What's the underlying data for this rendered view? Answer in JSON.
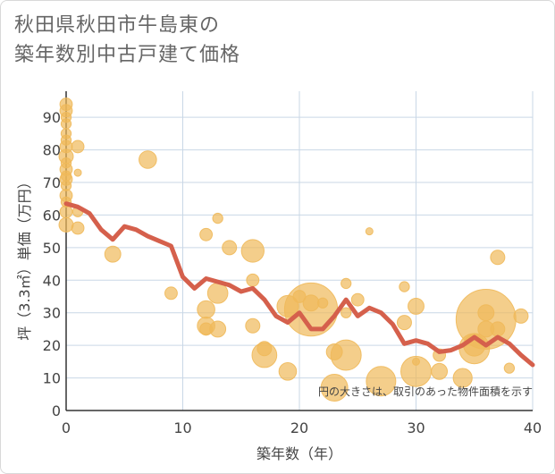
{
  "title_lines": [
    "秋田県秋田市牛島東の",
    "築年数別中古戸建て価格"
  ],
  "chart_data": {
    "type": "scatter",
    "xlabel": "築年数（年）",
    "ylabel": "坪（3.3㎡）単価（万円）",
    "xlim": [
      0,
      40
    ],
    "ylim": [
      0,
      98
    ],
    "xticks": [
      0,
      10,
      20,
      30,
      40
    ],
    "yticks": [
      0,
      10,
      20,
      30,
      40,
      50,
      60,
      70,
      80,
      90
    ],
    "grid": true,
    "note": "円の大きさは、取引のあった物件面積を示す",
    "colors": {
      "bubble": "#f0b95a",
      "line": "#d5604c",
      "grid": "#c9d7e6",
      "text": "#444444"
    },
    "points": [
      {
        "x": 0,
        "y": 94,
        "size": 3
      },
      {
        "x": 0,
        "y": 92,
        "size": 3
      },
      {
        "x": 0,
        "y": 90,
        "size": 2
      },
      {
        "x": 0,
        "y": 88,
        "size": 2
      },
      {
        "x": 0,
        "y": 85,
        "size": 2
      },
      {
        "x": 0,
        "y": 83,
        "size": 2
      },
      {
        "x": 0,
        "y": 81,
        "size": 3
      },
      {
        "x": 0,
        "y": 78,
        "size": 4
      },
      {
        "x": 0,
        "y": 76,
        "size": 2
      },
      {
        "x": 0,
        "y": 74,
        "size": 3
      },
      {
        "x": 0,
        "y": 72,
        "size": 2
      },
      {
        "x": 0,
        "y": 71,
        "size": 3
      },
      {
        "x": 0,
        "y": 69,
        "size": 2
      },
      {
        "x": 0,
        "y": 66,
        "size": 3
      },
      {
        "x": 0,
        "y": 64,
        "size": 2
      },
      {
        "x": 0,
        "y": 61,
        "size": 3
      },
      {
        "x": 0,
        "y": 57,
        "size": 4
      },
      {
        "x": 1,
        "y": 81,
        "size": 3
      },
      {
        "x": 1,
        "y": 73,
        "size": 1
      },
      {
        "x": 1,
        "y": 61,
        "size": 2
      },
      {
        "x": 1,
        "y": 56,
        "size": 3
      },
      {
        "x": 4,
        "y": 48,
        "size": 5
      },
      {
        "x": 7,
        "y": 77,
        "size": 6
      },
      {
        "x": 9,
        "y": 36,
        "size": 3
      },
      {
        "x": 12,
        "y": 54,
        "size": 3
      },
      {
        "x": 12,
        "y": 31,
        "size": 6
      },
      {
        "x": 12,
        "y": 26,
        "size": 6
      },
      {
        "x": 12,
        "y": 25,
        "size": 3
      },
      {
        "x": 13,
        "y": 59,
        "size": 2
      },
      {
        "x": 13,
        "y": 36,
        "size": 8
      },
      {
        "x": 13,
        "y": 25,
        "size": 5
      },
      {
        "x": 14,
        "y": 50,
        "size": 4
      },
      {
        "x": 16,
        "y": 49,
        "size": 10
      },
      {
        "x": 16,
        "y": 40,
        "size": 3
      },
      {
        "x": 16,
        "y": 26,
        "size": 4
      },
      {
        "x": 17,
        "y": 19,
        "size": 4
      },
      {
        "x": 17,
        "y": 17,
        "size": 12
      },
      {
        "x": 19,
        "y": 32,
        "size": 9
      },
      {
        "x": 19,
        "y": 12,
        "size": 6
      },
      {
        "x": 20,
        "y": 35,
        "size": 3
      },
      {
        "x": 21,
        "y": 31,
        "size": 55
      },
      {
        "x": 21,
        "y": 33,
        "size": 5
      },
      {
        "x": 22,
        "y": 33,
        "size": 2
      },
      {
        "x": 23,
        "y": 18,
        "size": 5
      },
      {
        "x": 23,
        "y": 7,
        "size": 14
      },
      {
        "x": 24,
        "y": 39,
        "size": 2
      },
      {
        "x": 24,
        "y": 30,
        "size": 2
      },
      {
        "x": 24,
        "y": 17,
        "size": 18
      },
      {
        "x": 25,
        "y": 34,
        "size": 3
      },
      {
        "x": 26,
        "y": 55,
        "size": 1
      },
      {
        "x": 27,
        "y": 9,
        "size": 17
      },
      {
        "x": 29,
        "y": 38,
        "size": 2
      },
      {
        "x": 29,
        "y": 27,
        "size": 4
      },
      {
        "x": 30,
        "y": 32,
        "size": 5
      },
      {
        "x": 30,
        "y": 15,
        "size": 1
      },
      {
        "x": 30,
        "y": 12,
        "size": 18
      },
      {
        "x": 32,
        "y": 17,
        "size": 3
      },
      {
        "x": 32,
        "y": 12,
        "size": 5
      },
      {
        "x": 34,
        "y": 10,
        "size": 7
      },
      {
        "x": 35,
        "y": 20,
        "size": 9
      },
      {
        "x": 35,
        "y": 19,
        "size": 18
      },
      {
        "x": 36,
        "y": 28,
        "size": 70
      },
      {
        "x": 36,
        "y": 30,
        "size": 5
      },
      {
        "x": 36,
        "y": 25,
        "size": 5
      },
      {
        "x": 37,
        "y": 47,
        "size": 4
      },
      {
        "x": 37,
        "y": 25,
        "size": 4
      },
      {
        "x": 38,
        "y": 13,
        "size": 2
      },
      {
        "x": 39,
        "y": 29,
        "size": 4
      }
    ],
    "trend": {
      "x": [
        0,
        1,
        2,
        3,
        4,
        5,
        6,
        7,
        8,
        9,
        10,
        11,
        12,
        13,
        14,
        15,
        16,
        17,
        18,
        19,
        20,
        21,
        22,
        23,
        24,
        25,
        26,
        27,
        28,
        29,
        30,
        31,
        32,
        33,
        34,
        35,
        36,
        37,
        38,
        39,
        40
      ],
      "y": [
        63.5,
        62.5,
        60.5,
        55.5,
        52.5,
        56.5,
        55.5,
        53.5,
        52,
        50.5,
        41,
        37.5,
        40.5,
        39.5,
        38.5,
        36.5,
        37.5,
        34,
        29,
        27,
        30,
        25,
        25,
        29,
        34,
        29,
        31.5,
        30,
        26.5,
        20.5,
        21.5,
        20.5,
        18,
        18.5,
        20,
        22.5,
        20,
        22.5,
        20.5,
        17,
        14
      ]
    }
  }
}
